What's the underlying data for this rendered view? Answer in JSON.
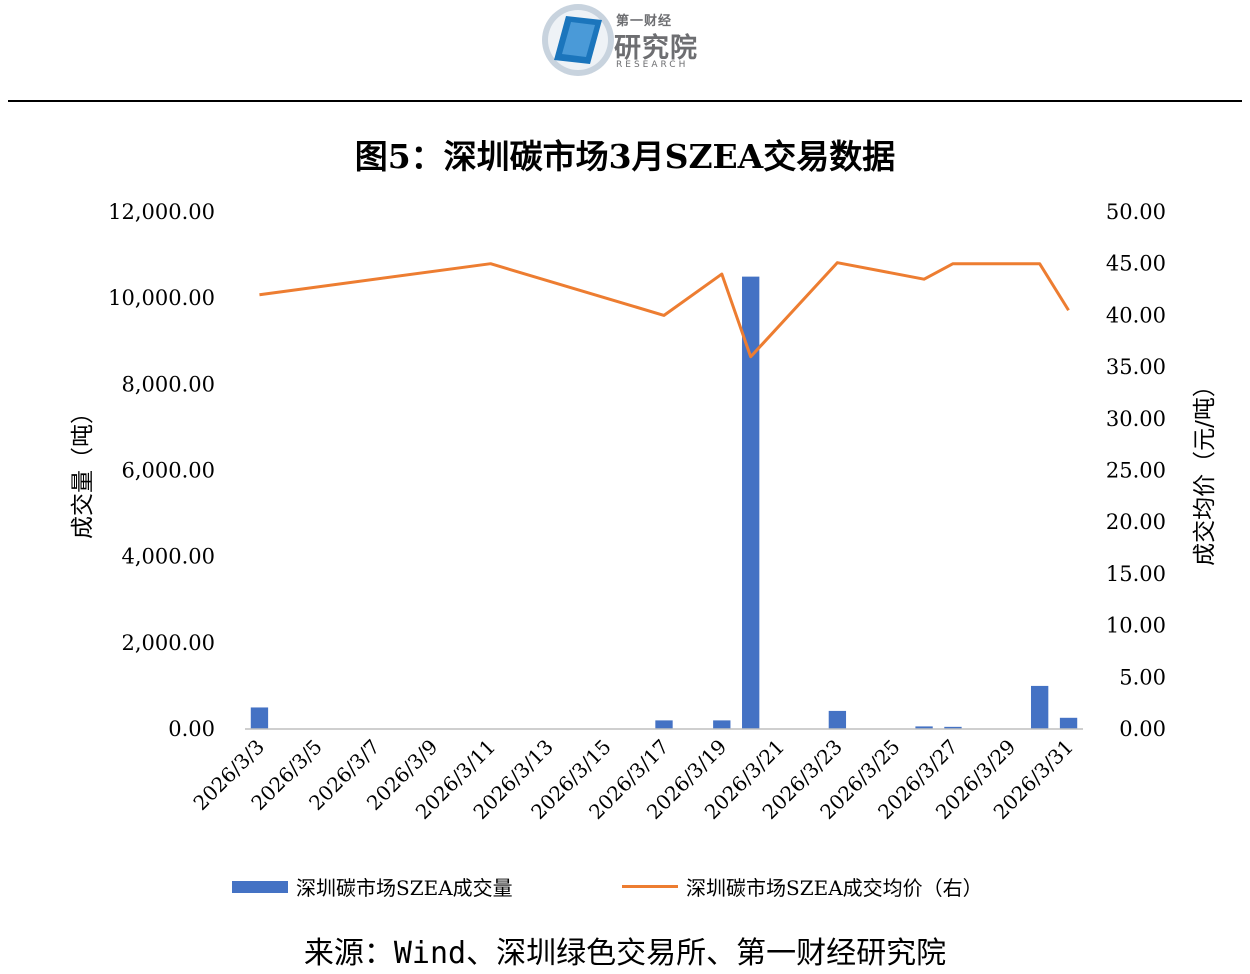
{
  "header": {
    "logo_small": "第一财经",
    "logo_big": "研究院",
    "logo_en": "RESEARCH"
  },
  "title": "图5：深圳碳市场3月SZEA交易数据",
  "source": "来源：Wind、深圳绿色交易所、第一财经研究院",
  "colors": {
    "bar": "#4472c4",
    "line": "#ed7d31",
    "logo_blue": "#1b75bc",
    "logo_gray": "#6d6e71"
  },
  "chart_data": {
    "type": "bar+line",
    "y_left_label": "成交量（吨）",
    "y_right_label": "成交均价（元/吨）",
    "y_left_ticks": [
      "0.00",
      "2,000.00",
      "4,000.00",
      "6,000.00",
      "8,000.00",
      "10,000.00",
      "12,000.00"
    ],
    "y_right_ticks": [
      "0.00",
      "5.00",
      "10.00",
      "15.00",
      "20.00",
      "25.00",
      "30.00",
      "35.00",
      "40.00",
      "45.00",
      "50.00"
    ],
    "y_left_range": [
      0,
      12000
    ],
    "y_right_range": [
      0,
      50
    ],
    "x_tick_labels": [
      "2026/3/3",
      "2026/3/5",
      "2026/3/7",
      "2026/3/9",
      "2026/3/11",
      "2026/3/13",
      "2026/3/15",
      "2026/3/17",
      "2026/3/19",
      "2026/3/21",
      "2026/3/23",
      "2026/3/25",
      "2026/3/27",
      "2026/3/29",
      "2026/3/31"
    ],
    "dates": [
      "2026/3/3",
      "2026/3/11",
      "2026/3/17",
      "2026/3/19",
      "2026/3/20",
      "2026/3/23",
      "2026/3/26",
      "2026/3/27",
      "2026/3/30",
      "2026/3/31"
    ],
    "series": [
      {
        "name": "深圳碳市场SZEA成交量",
        "axis": "left",
        "kind": "bar",
        "values": [
          500,
          0,
          200,
          200,
          10500,
          420,
          60,
          50,
          1000,
          260
        ]
      },
      {
        "name": "深圳碳市场SZEA成交均价（右）",
        "axis": "right",
        "kind": "line",
        "values": [
          42,
          45,
          40,
          44,
          36,
          45.1,
          43.5,
          45,
          45,
          40.5
        ]
      }
    ],
    "grid": false,
    "legend_position": "bottom"
  }
}
